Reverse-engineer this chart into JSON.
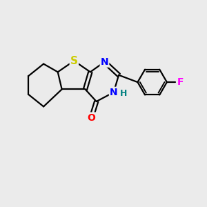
{
  "background_color": "#ebebeb",
  "atom_colors": {
    "S": "#cccc00",
    "N": "#0000ff",
    "O": "#ff0000",
    "F": "#ff00ff",
    "H": "#008080",
    "C": "#000000"
  },
  "bond_color": "#000000",
  "bond_width": 1.6,
  "font_size_atoms": 10,
  "xlim": [
    0,
    10
  ],
  "ylim": [
    0,
    10
  ]
}
